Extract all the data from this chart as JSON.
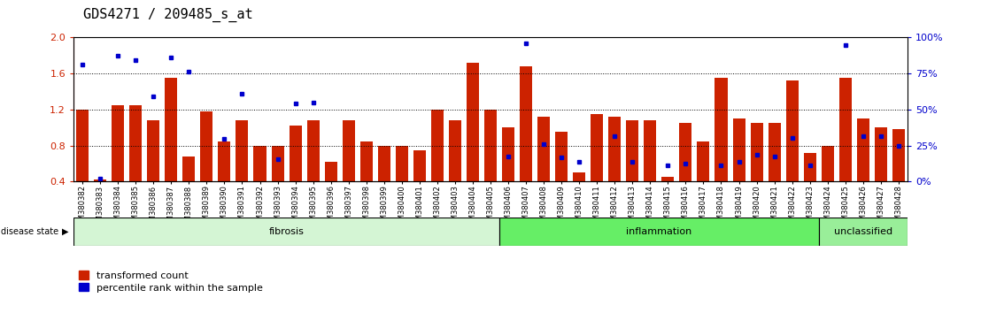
{
  "title": "GDS4271 / 209485_s_at",
  "samples": [
    "GSM380382",
    "GSM380383",
    "GSM380384",
    "GSM380385",
    "GSM380386",
    "GSM380387",
    "GSM380388",
    "GSM380389",
    "GSM380390",
    "GSM380391",
    "GSM380392",
    "GSM380393",
    "GSM380394",
    "GSM380395",
    "GSM380396",
    "GSM380397",
    "GSM380398",
    "GSM380399",
    "GSM380400",
    "GSM380401",
    "GSM380402",
    "GSM380403",
    "GSM380404",
    "GSM380405",
    "GSM380406",
    "GSM380407",
    "GSM380408",
    "GSM380409",
    "GSM380410",
    "GSM380411",
    "GSM380412",
    "GSM380413",
    "GSM380414",
    "GSM380415",
    "GSM380416",
    "GSM380417",
    "GSM380418",
    "GSM380419",
    "GSM380420",
    "GSM380421",
    "GSM380422",
    "GSM380423",
    "GSM380424",
    "GSM380425",
    "GSM380426",
    "GSM380427",
    "GSM380428"
  ],
  "bar_values": [
    1.2,
    0.42,
    1.25,
    1.25,
    1.08,
    1.55,
    0.68,
    1.18,
    0.85,
    1.08,
    0.8,
    0.8,
    1.02,
    1.08,
    0.62,
    1.08,
    0.85,
    0.8,
    0.8,
    0.75,
    1.2,
    1.08,
    1.72,
    1.2,
    1.0,
    1.68,
    1.12,
    0.95,
    0.5,
    1.15,
    1.12,
    1.08,
    1.08,
    0.45,
    1.05,
    0.85,
    1.55,
    1.1,
    1.05,
    1.05,
    1.52,
    0.72,
    0.8,
    1.55,
    1.1,
    1.0,
    0.98
  ],
  "blue_dot_values": [
    1.7,
    0.43,
    1.8,
    1.75,
    1.35,
    1.78,
    1.62,
    null,
    0.87,
    1.38,
    null,
    0.65,
    1.27,
    1.28,
    null,
    null,
    null,
    null,
    null,
    null,
    null,
    null,
    null,
    null,
    0.68,
    1.94,
    0.82,
    0.67,
    0.62,
    null,
    0.9,
    0.62,
    null,
    0.58,
    0.6,
    null,
    0.58,
    0.62,
    0.7,
    0.68,
    0.88,
    0.58,
    null,
    1.92,
    0.9,
    0.9,
    0.8
  ],
  "disease_groups": [
    {
      "label": "fibrosis",
      "start": 0,
      "end": 23,
      "color": "#d4f5d4"
    },
    {
      "label": "inflammation",
      "start": 24,
      "end": 41,
      "color": "#66ee66"
    },
    {
      "label": "unclassified",
      "start": 42,
      "end": 46,
      "color": "#99ee99"
    }
  ],
  "bar_color": "#cc2200",
  "dot_color": "#0000cc",
  "bar_bottom": 0.4,
  "ylim_left": [
    0.4,
    2.0
  ],
  "ylim_right": [
    0,
    100
  ],
  "yticks_left": [
    0.4,
    0.8,
    1.2,
    1.6,
    2.0
  ],
  "yticks_right": [
    0,
    25,
    50,
    75,
    100
  ],
  "grid_values": [
    0.8,
    1.2,
    1.6
  ],
  "legend_items": [
    {
      "label": "transformed count",
      "color": "#cc2200"
    },
    {
      "label": "percentile rank within the sample",
      "color": "#0000cc"
    }
  ],
  "disease_state_label": "disease state",
  "title_fontsize": 11,
  "tick_fontsize": 6.0,
  "axis_label_color_left": "#cc2200",
  "axis_label_color_right": "#0000cc"
}
